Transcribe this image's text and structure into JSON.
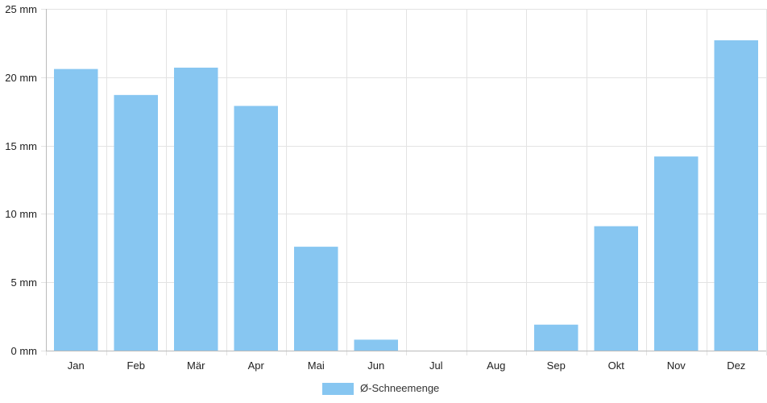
{
  "chart_data": {
    "type": "bar",
    "categories": [
      "Jan",
      "Feb",
      "Mär",
      "Apr",
      "Mai",
      "Jun",
      "Jul",
      "Aug",
      "Sep",
      "Okt",
      "Nov",
      "Dez"
    ],
    "series": [
      {
        "name": "Ø-Schneemenge",
        "values": [
          20.6,
          18.7,
          20.7,
          17.9,
          7.6,
          0.8,
          0,
          0,
          1.9,
          9.1,
          14.2,
          22.7
        ],
        "color": "#87c6f1"
      }
    ],
    "y_unit": "mm",
    "ylim": [
      0,
      25
    ],
    "y_ticks": [
      0,
      5,
      10,
      15,
      20,
      25
    ],
    "y_tick_labels": [
      "0 mm",
      "5 mm",
      "10 mm",
      "15 mm",
      "20 mm",
      "25 mm"
    ],
    "grid": true,
    "legend_position": "bottom-center",
    "colors": {
      "grid": "#e3e3e3",
      "axis": "#bbbbbb",
      "text": "#222222"
    }
  }
}
